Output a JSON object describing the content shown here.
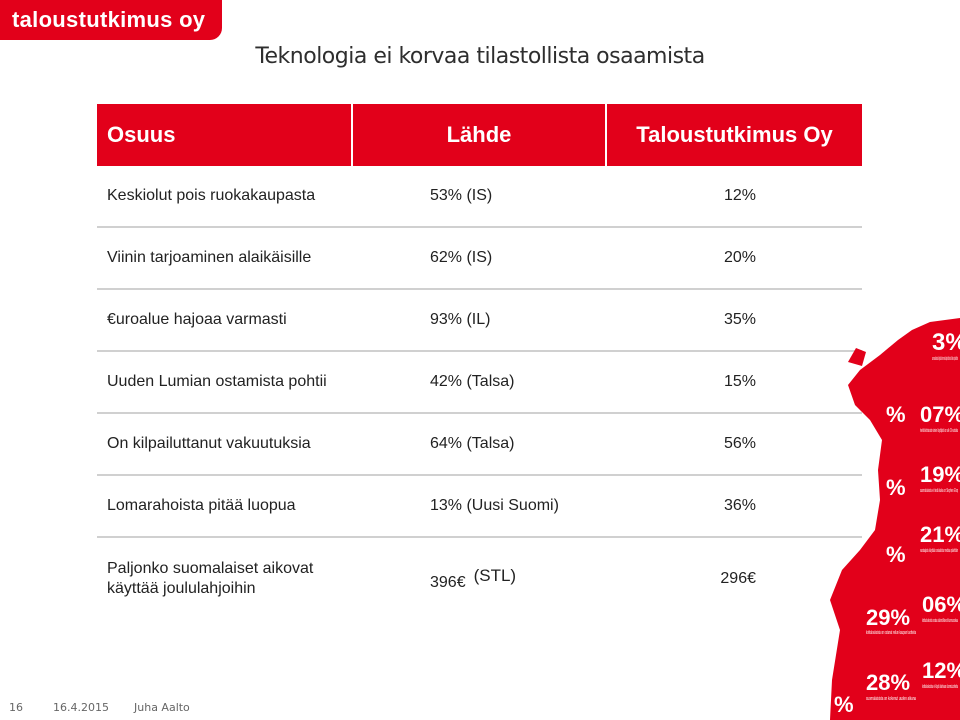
{
  "brand": {
    "logo_text": "taloustutkimus oy",
    "color": "#e2001a"
  },
  "title": "Teknologia ei korvaa tilastollista osaamista",
  "table": {
    "headers": [
      "Osuus",
      "Lähde",
      "Taloustutkimus Oy"
    ],
    "rows": [
      {
        "label": "Keskiolut pois ruokakaupasta",
        "source": "53% (IS)",
        "tt": "12%"
      },
      {
        "label": "Viinin tarjoaminen alaikäisille",
        "source": "62% (IS)",
        "tt": "20%"
      },
      {
        "label": "€uroalue hajoaa varmasti",
        "source": "93% (IL)",
        "tt": "35%"
      },
      {
        "label": "Uuden Lumian ostamista pohtii",
        "source": "42% (Talsa)",
        "tt": "15%"
      },
      {
        "label": "On kilpailuttanut vakuutuksia",
        "source": "64% (Talsa)",
        "tt": "56%"
      },
      {
        "label": "Lomarahoista pitää luopua",
        "source": "13% (Uusi Suomi)",
        "tt": "36%"
      },
      {
        "label": "Paljonko suomalaiset aikovat käyttää joululahjoihin",
        "source": "396€",
        "source_note": "(STL)",
        "tt": "296€"
      }
    ]
  },
  "decoration": {
    "numbers": [
      "3%",
      "07%",
      "19%",
      "21%",
      "29%",
      "06%",
      "12%",
      "28%",
      "%",
      "%",
      "%",
      "%"
    ],
    "texts": [
      "suomalaisista käyttää internetiä päivittäin tai lähes päivittäin",
      "henkilökohtaisista viinien käyttäjistä on alle 25-vuotiaita",
      "suomalaisista ei tiedä kuka on Stephen Elop",
      "vastaajista käyttää sosiaalista mediaa päivittäin",
      "kotitalouksista on ostanut reilun kaupan tuotteita",
      "kotitalouksista ostaa säännöllisesti luomuruokaa",
      "kotitalouksista ei käytä lainkaan luomutuotteita",
      "suomalaisista on kokenut uuden aikana"
    ]
  },
  "footer": {
    "page": "16",
    "date": "16.4.2015",
    "author": "Juha Aalto"
  }
}
